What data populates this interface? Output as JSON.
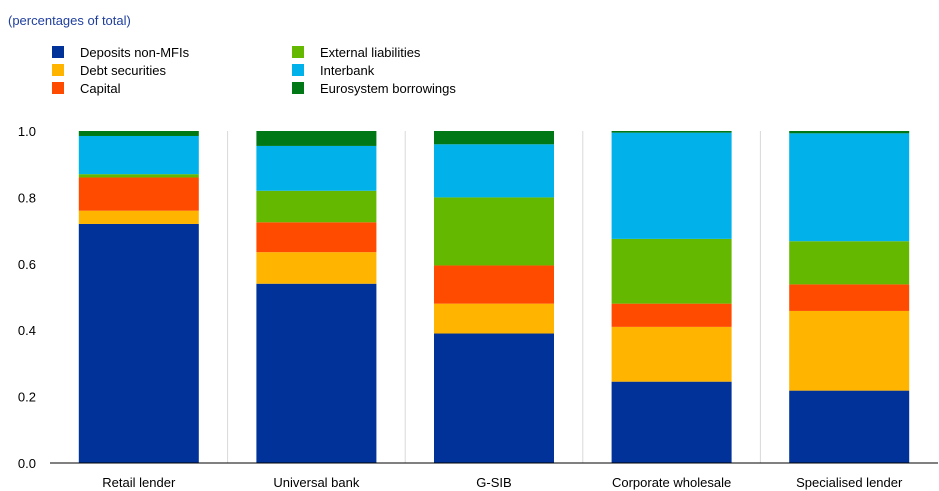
{
  "chart_data": {
    "type": "bar",
    "stacked": true,
    "subtitle": "(percentages of total)",
    "title": "",
    "xlabel": "",
    "ylabel": "",
    "ylim": [
      0,
      1.0
    ],
    "yticks": [
      "0.0",
      "0.2",
      "0.4",
      "0.6",
      "0.8",
      "1.0"
    ],
    "grid": "vertical",
    "legend_placement": "top-left",
    "categories": [
      "Retail lender",
      "Universal bank",
      "G-SIB",
      "Corporate wholesale",
      "Specialised lender"
    ],
    "series": [
      {
        "name": "Deposits non-MFIs",
        "color": "#003299",
        "values": [
          0.72,
          0.54,
          0.39,
          0.245,
          0.218
        ]
      },
      {
        "name": "Debt securities",
        "color": "#ffb400",
        "values": [
          0.04,
          0.095,
          0.09,
          0.165,
          0.24
        ]
      },
      {
        "name": "Capital",
        "color": "#ff4b00",
        "values": [
          0.1,
          0.09,
          0.115,
          0.07,
          0.08
        ]
      },
      {
        "name": "External liabilities",
        "color": "#65b800",
        "values": [
          0.01,
          0.095,
          0.205,
          0.195,
          0.13
        ]
      },
      {
        "name": "Interbank",
        "color": "#00b1ea",
        "values": [
          0.115,
          0.135,
          0.16,
          0.32,
          0.325
        ]
      },
      {
        "name": "Eurosystem borrowings",
        "color": "#007816",
        "values": [
          0.015,
          0.045,
          0.04,
          0.005,
          0.007
        ]
      }
    ]
  }
}
